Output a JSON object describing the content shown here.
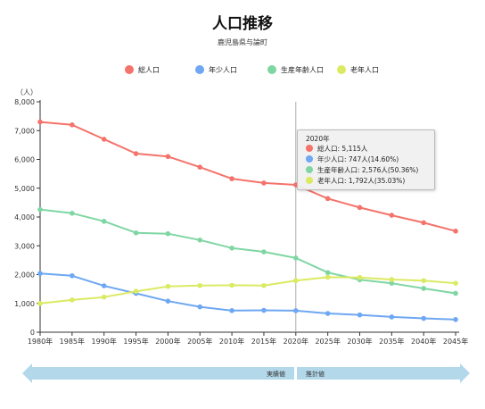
{
  "colors": {
    "total": "#f4736b",
    "young": "#6ea7f2",
    "working": "#7fd6a3",
    "elderly": "#dbea62",
    "axis": "#333333",
    "marker_line": "#aaaaaa",
    "arrow": "#b3d8ea"
  },
  "chart": {
    "title": "人口推移",
    "subtitle": "鹿児島県与論町"
  },
  "tooltip": {
    "header": "2020年",
    "rows": [
      {
        "color": "#f4736b",
        "text": "総人口: 5,115人"
      },
      {
        "color": "#6ea7f2",
        "text": "年少人口: 747人(14.60%)"
      },
      {
        "color": "#7fd6a3",
        "text": "生産年齢人口: 2,576人(50.36%)"
      },
      {
        "color": "#dbea62",
        "text": "老年人口: 1,792人(35.03%)"
      }
    ]
  },
  "bands": {
    "actual": "実績値",
    "projected": "推計値"
  },
  "chart_data": {
    "type": "line",
    "title": "人口推移",
    "subtitle": "鹿児島県与論町",
    "ylabel": "（人）",
    "ylim": [
      0,
      8000
    ],
    "yticks": [
      "0",
      "1,000",
      "2,000",
      "3,000",
      "4,000",
      "5,000",
      "6,000",
      "7,000",
      "8,000"
    ],
    "categories": [
      "1980年",
      "1985年",
      "1990年",
      "1995年",
      "2000年",
      "2005年",
      "2010年",
      "2015年",
      "2020年",
      "2025年",
      "2030年",
      "2035年",
      "2040年",
      "2045年"
    ],
    "grid": false,
    "legend_position": "top",
    "highlighted_category": "2020年",
    "series": [
      {
        "name": "総人口",
        "color": "#f4736b",
        "values": [
          7300,
          7200,
          6700,
          6200,
          6100,
          5730,
          5330,
          5180,
          5115,
          4640,
          4330,
          4060,
          3800,
          3510
        ]
      },
      {
        "name": "年少人口",
        "color": "#6ea7f2",
        "values": [
          2040,
          1960,
          1610,
          1350,
          1080,
          880,
          750,
          760,
          747,
          650,
          600,
          530,
          480,
          440
        ]
      },
      {
        "name": "生産年齢人口",
        "color": "#7fd6a3",
        "values": [
          4260,
          4130,
          3850,
          3450,
          3420,
          3200,
          2920,
          2790,
          2576,
          2070,
          1820,
          1700,
          1520,
          1350
        ]
      },
      {
        "name": "老年人口",
        "color": "#dbea62",
        "values": [
          1000,
          1120,
          1220,
          1420,
          1590,
          1620,
          1630,
          1620,
          1792,
          1910,
          1900,
          1830,
          1790,
          1700
        ]
      }
    ]
  }
}
